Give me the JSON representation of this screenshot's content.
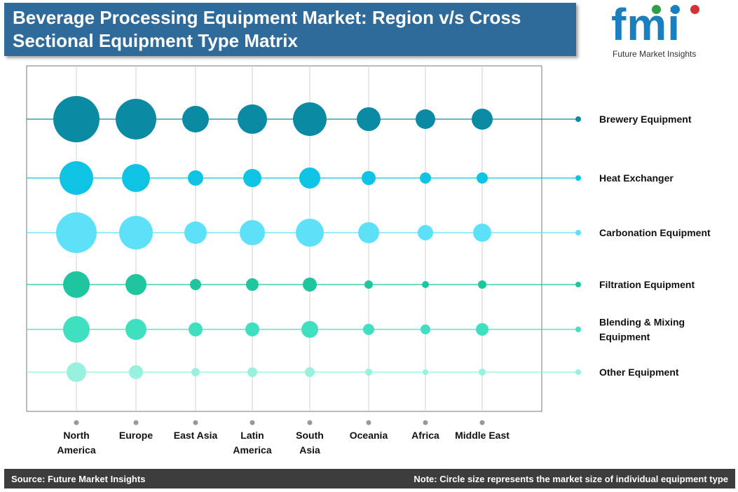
{
  "title": {
    "line1": "Beverage Processing Equipment Market: Region v/s Cross",
    "line2": "Sectional Equipment Type Matrix"
  },
  "logo": {
    "mark": "fmi",
    "subtitle": "Future Market Insights"
  },
  "footer": {
    "source": "Source: Future Market Insights",
    "note": "Note: Circle size represents the market size of individual equipment type"
  },
  "chart_data": {
    "type": "bubble-matrix",
    "grid": false,
    "legend": "right",
    "x_categories": [
      [
        "North",
        "America"
      ],
      [
        "Europe"
      ],
      [
        "East Asia"
      ],
      [
        "Latin",
        "America"
      ],
      [
        "South",
        "Asia"
      ],
      [
        "Oceania"
      ],
      [
        "Africa"
      ],
      [
        "Middle East"
      ]
    ],
    "series": [
      {
        "name": "Brewery Equipment",
        "label_lines": [
          "Brewery Equipment"
        ],
        "color": "#0b8aa3",
        "values": [
          33,
          29,
          19,
          21,
          24,
          17,
          14,
          15
        ]
      },
      {
        "name": "Heat Exchanger",
        "label_lines": [
          "Heat Exchanger"
        ],
        "color": "#0ec3e3",
        "values": [
          24,
          20,
          11,
          13,
          15,
          10,
          8,
          8
        ]
      },
      {
        "name": "Carbonation Equipment",
        "label_lines": [
          "Carbonation  Equipment"
        ],
        "color": "#5ce1f9",
        "values": [
          29,
          24,
          16,
          18,
          20,
          15,
          11,
          13
        ]
      },
      {
        "name": "Filtration Equipment",
        "label_lines": [
          "Filtration  Equipment"
        ],
        "color": "#1ec59e",
        "values": [
          19,
          15,
          8,
          9,
          10,
          6,
          5,
          6
        ]
      },
      {
        "name": "Blending & Mixing Equipment",
        "label_lines": [
          "Blending & Mixing",
          "Equipment"
        ],
        "color": "#3ee0c0",
        "values": [
          19,
          15,
          10,
          10,
          12,
          8,
          7,
          9
        ]
      },
      {
        "name": "Other Equipment",
        "label_lines": [
          "Other Equipment"
        ],
        "color": "#98f0de",
        "values": [
          14,
          10,
          6,
          7,
          7,
          5,
          4,
          5
        ]
      }
    ]
  },
  "colors": {
    "title_bar": "#2f6b9a",
    "footer": "#3d3d3d",
    "logo_blue": "#1a7fbf",
    "axis_tick": "#999999"
  }
}
